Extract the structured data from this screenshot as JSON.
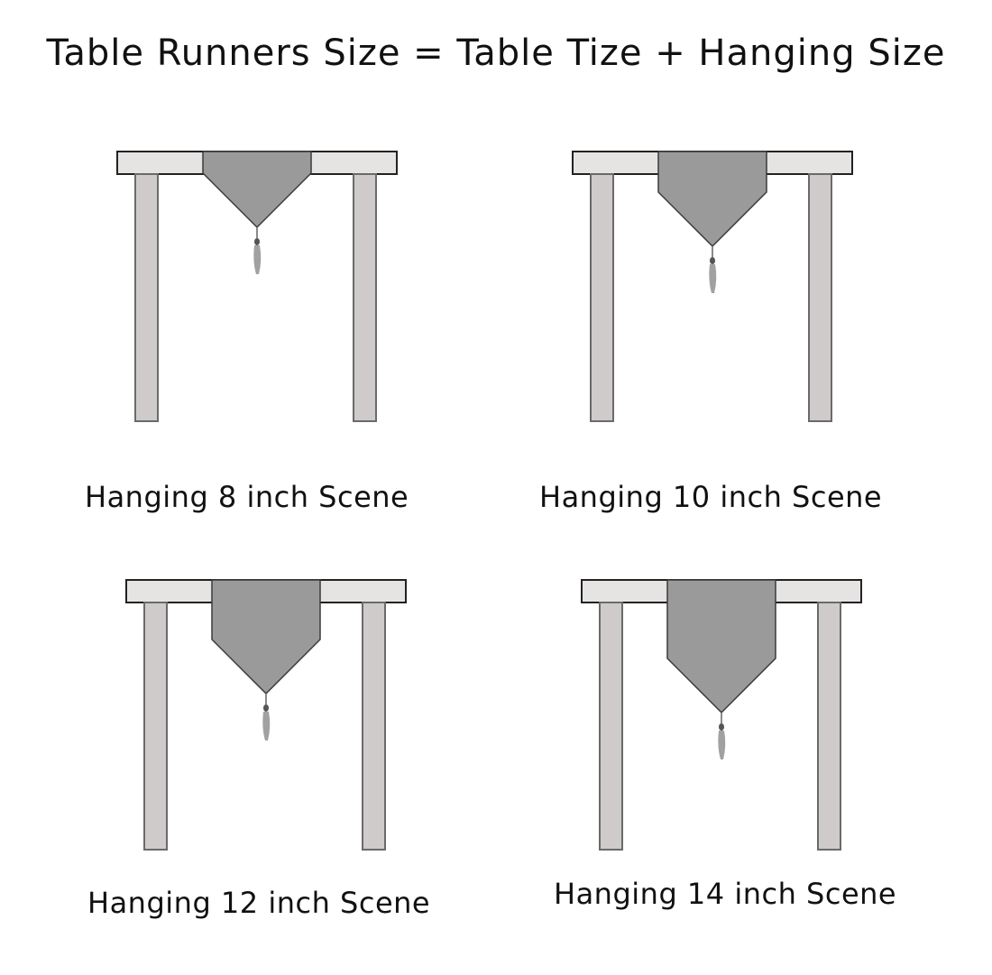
{
  "title": "Table Runners Size = Table Tize + Hanging Size",
  "colors": {
    "runner": "#9a9a9a",
    "runner_stroke": "#3a3a3a",
    "leg": "#cfcbcb",
    "leg_stroke": "#6a6a6a",
    "tabletop": "#e6e3e3",
    "tassel": "#8a8a8a"
  },
  "scenes": [
    {
      "id": "8",
      "label": "Hanging 8 inch Scene",
      "hanging_inch": 8
    },
    {
      "id": "10",
      "label": "Hanging 10 inch Scene",
      "hanging_inch": 10
    },
    {
      "id": "12",
      "label": "Hanging 12 inch Scene",
      "hanging_inch": 12
    },
    {
      "id": "14",
      "label": "Hanging 14 inch Scene",
      "hanging_inch": 14
    }
  ]
}
